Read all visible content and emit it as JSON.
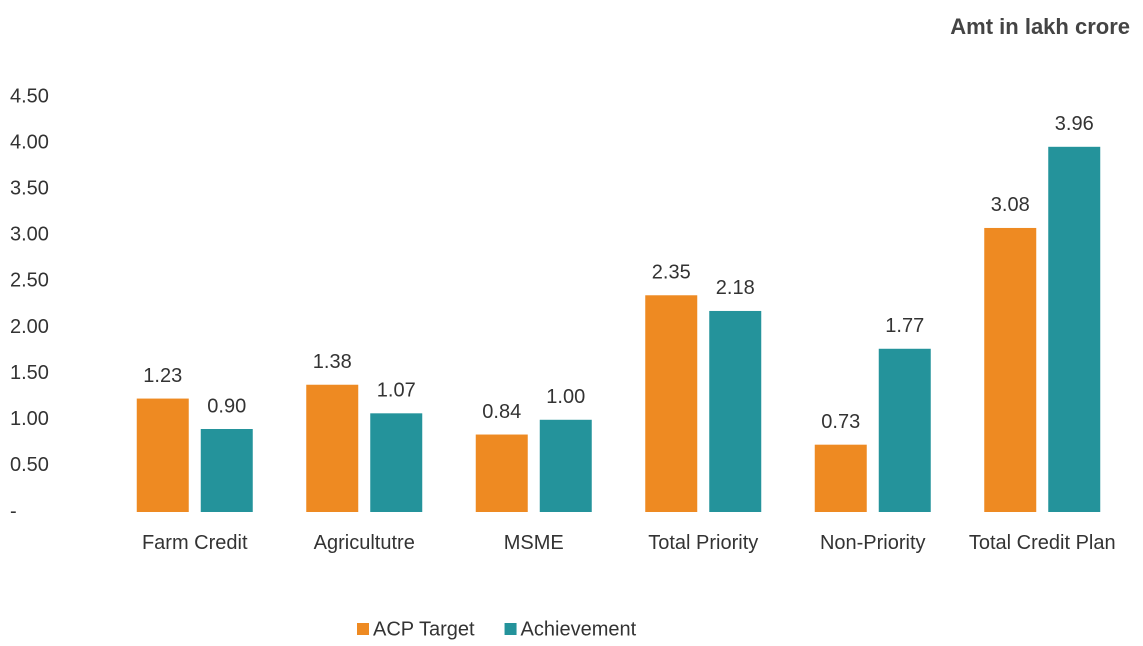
{
  "chart_data": {
    "type": "bar",
    "title": "Amt in lakh crore",
    "categories": [
      "Farm Credit",
      "Agricultutre",
      "MSME",
      "Total Priority",
      "Non-Priority",
      "Total Credit Plan"
    ],
    "series": [
      {
        "name": "ACP Target",
        "color": "#ee8a22",
        "values": [
          1.23,
          1.38,
          0.84,
          2.35,
          0.73,
          3.08
        ],
        "value_labels": [
          "1.23",
          "1.38",
          "0.84",
          "2.35",
          "0.73",
          "3.08"
        ]
      },
      {
        "name": "Achievement",
        "color": "#24939b",
        "values": [
          0.9,
          1.07,
          1.0,
          2.18,
          1.77,
          3.96
        ],
        "value_labels": [
          "0.90",
          "1.07",
          "1.00",
          "2.18",
          "1.77",
          "3.96"
        ]
      }
    ],
    "ylim": [
      0,
      4.5
    ],
    "yticks": [
      {
        "value": 0,
        "label": "-"
      },
      {
        "value": 0.5,
        "label": "0.50"
      },
      {
        "value": 1,
        "label": "1.00"
      },
      {
        "value": 1.5,
        "label": "1.50"
      },
      {
        "value": 2,
        "label": "2.00"
      },
      {
        "value": 2.5,
        "label": "2.50"
      },
      {
        "value": 3,
        "label": "3.00"
      },
      {
        "value": 3.5,
        "label": "3.50"
      },
      {
        "value": 4,
        "label": "4.00"
      },
      {
        "value": 4.5,
        "label": "4.50"
      }
    ],
    "grid": false,
    "legend": "bottom"
  }
}
